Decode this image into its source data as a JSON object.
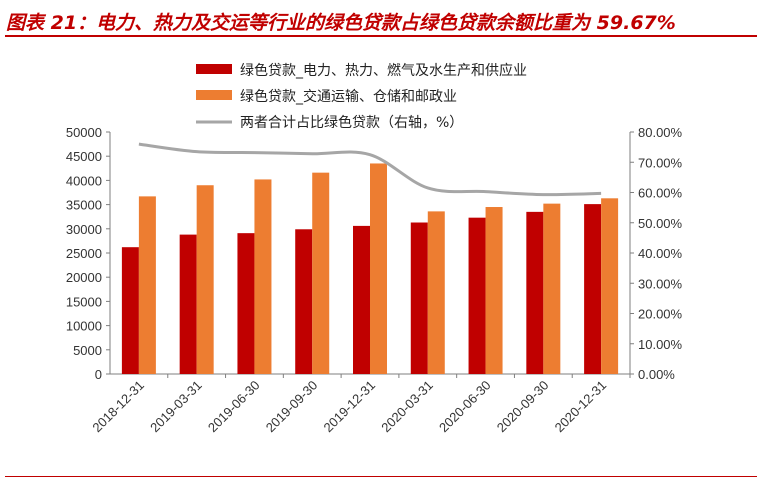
{
  "title": "图表 21：电力、热力及交运等行业的绿色贷款占绿色贷款余额比重为 59.67%",
  "colors": {
    "series1": "#c00000",
    "series2": "#ed7d31",
    "line": "#a6a6a6",
    "title": "#c00000"
  },
  "chart_data": {
    "type": "bar",
    "title": "",
    "xlabel": "",
    "ylabel": "",
    "categories": [
      "2018-12-31",
      "2019-03-31",
      "2019-06-30",
      "2019-09-30",
      "2019-12-31",
      "2020-03-31",
      "2020-06-30",
      "2020-09-30",
      "2020-12-31"
    ],
    "series": [
      {
        "name": "绿色贷款_电力、热力、燃气及水生产和供应业",
        "type": "bar",
        "axis": "left",
        "values": [
          26200,
          28800,
          29100,
          29900,
          30600,
          31300,
          32300,
          33500,
          35100
        ]
      },
      {
        "name": "绿色贷款_交通运输、仓储和邮政业",
        "type": "bar",
        "axis": "left",
        "values": [
          36700,
          39000,
          40200,
          41600,
          43500,
          33600,
          34500,
          35200,
          36300
        ]
      },
      {
        "name": "两者合计占比绿色贷款（右轴，%）",
        "type": "line",
        "axis": "right",
        "values": [
          76.0,
          73.5,
          73.2,
          72.8,
          72.5,
          61.5,
          60.3,
          59.3,
          59.7
        ]
      }
    ],
    "ylim_left": [
      0,
      50000
    ],
    "ylim_right": [
      0,
      80
    ],
    "yticks_left": [
      "0",
      "5000",
      "10000",
      "15000",
      "20000",
      "25000",
      "30000",
      "35000",
      "40000",
      "45000",
      "50000"
    ],
    "yticks_right": [
      "0.00%",
      "10.00%",
      "20.00%",
      "30.00%",
      "40.00%",
      "50.00%",
      "60.00%",
      "70.00%",
      "80.00%"
    ],
    "legend_position": "top",
    "grid": false
  }
}
